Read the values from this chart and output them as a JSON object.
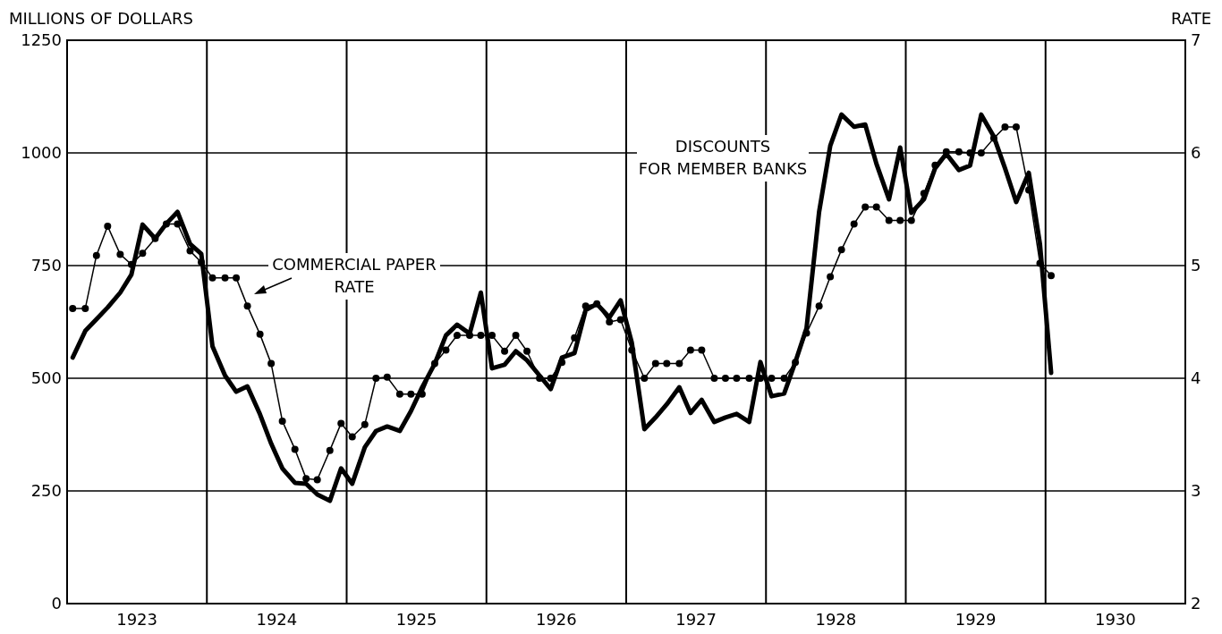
{
  "chart_data": {
    "type": "line",
    "ylabel": "MILLIONS OF DOLLARS",
    "y2label": "RATE",
    "x": [
      1923.04,
      1923.13,
      1923.21,
      1923.29,
      1923.38,
      1923.46,
      1923.54,
      1923.63,
      1923.71,
      1923.79,
      1923.88,
      1923.96,
      1924.04,
      1924.13,
      1924.21,
      1924.29,
      1924.38,
      1924.46,
      1924.54,
      1924.63,
      1924.71,
      1924.79,
      1924.88,
      1924.96,
      1925.04,
      1925.13,
      1925.21,
      1925.29,
      1925.38,
      1925.46,
      1925.54,
      1925.63,
      1925.71,
      1925.79,
      1925.88,
      1925.96,
      1926.04,
      1926.13,
      1926.21,
      1926.29,
      1926.38,
      1926.46,
      1926.54,
      1926.63,
      1926.71,
      1926.79,
      1926.88,
      1926.96,
      1927.04,
      1927.13,
      1927.21,
      1927.29,
      1927.38,
      1927.46,
      1927.54,
      1927.63,
      1927.71,
      1927.79,
      1927.88,
      1927.96,
      1928.04,
      1928.13,
      1928.21,
      1928.29,
      1928.38,
      1928.46,
      1928.54,
      1928.63,
      1928.71,
      1928.79,
      1928.88,
      1928.96,
      1929.04,
      1929.13,
      1929.21,
      1929.29,
      1929.38,
      1929.46,
      1929.54,
      1929.63,
      1929.71,
      1929.79,
      1929.88,
      1929.96,
      1930.04
    ],
    "xlim": [
      1923,
      1931
    ],
    "xticks": [
      {
        "value": 1923,
        "label": null
      },
      {
        "value": 1923.5,
        "label": "1923"
      },
      {
        "value": 1924,
        "label": null
      },
      {
        "value": 1924.5,
        "label": "1924"
      },
      {
        "value": 1925,
        "label": null
      },
      {
        "value": 1925.5,
        "label": "1925"
      },
      {
        "value": 1926,
        "label": null
      },
      {
        "value": 1926.5,
        "label": "1926"
      },
      {
        "value": 1927,
        "label": null
      },
      {
        "value": 1927.5,
        "label": "1927"
      },
      {
        "value": 1928,
        "label": null
      },
      {
        "value": 1928.5,
        "label": "1928"
      },
      {
        "value": 1929,
        "label": null
      },
      {
        "value": 1929.5,
        "label": "1929"
      },
      {
        "value": 1930,
        "label": null
      },
      {
        "value": 1930.5,
        "label": "1930"
      },
      {
        "value": 1931,
        "label": null
      }
    ],
    "ylim": [
      0,
      1250
    ],
    "yticks": [
      0,
      250,
      500,
      750,
      1000,
      1250
    ],
    "y2lim": [
      2,
      7
    ],
    "y2ticks": [
      2,
      3,
      4,
      5,
      6,
      7
    ],
    "grid": true,
    "series": [
      {
        "name": "DISCOUNTS\nFOR MEMBER BANKS",
        "color": "#000000",
        "marker": "none",
        "values": [
          546,
          605,
          631,
          657,
          690,
          730,
          841,
          810,
          843,
          869,
          798,
          776,
          571,
          506,
          470,
          482,
          420,
          355,
          300,
          268,
          266,
          242,
          228,
          300,
          266,
          347,
          383,
          393,
          383,
          427,
          480,
          532,
          595,
          619,
          599,
          690,
          522,
          530,
          560,
          540,
          506,
          476,
          546,
          556,
          651,
          665,
          635,
          673,
          579,
          387,
          413,
          442,
          480,
          423,
          452,
          403,
          413,
          421,
          403,
          536,
          460,
          466,
          536,
          611,
          869,
          1016,
          1085,
          1058,
          1063,
          976,
          897,
          1012,
          867,
          897,
          966,
          998,
          962,
          972,
          1085,
          1036,
          966,
          891,
          956,
          798,
          512
        ]
      },
      {
        "name": "COMMERCIAL PAPER\nRATE",
        "color": "#000000",
        "marker": "circle",
        "axis": "y2",
        "values": [
          4.62,
          4.62,
          5.09,
          5.35,
          5.1,
          5.01,
          5.11,
          5.24,
          5.37,
          5.37,
          5.13,
          5.03,
          4.89,
          4.89,
          4.89,
          4.64,
          4.39,
          4.13,
          3.62,
          3.37,
          3.11,
          3.1,
          3.36,
          3.6,
          3.48,
          3.59,
          4.0,
          4.01,
          3.86,
          3.86,
          3.86,
          4.13,
          4.25,
          4.38,
          4.38,
          4.38,
          4.38,
          4.24,
          4.38,
          4.24,
          4.0,
          4.0,
          4.14,
          4.36,
          4.64,
          4.66,
          4.5,
          4.52,
          4.25,
          4.0,
          4.13,
          4.13,
          4.13,
          4.25,
          4.25,
          4.0,
          4.0,
          4.0,
          4.0,
          4.0,
          4.0,
          4.0,
          4.14,
          4.4,
          4.64,
          4.9,
          5.14,
          5.37,
          5.52,
          5.52,
          5.4,
          5.4,
          5.4,
          5.64,
          5.89,
          6.01,
          6.01,
          6.0,
          6.0,
          6.13,
          6.23,
          6.23,
          5.67,
          5.02,
          4.91
        ]
      }
    ]
  }
}
